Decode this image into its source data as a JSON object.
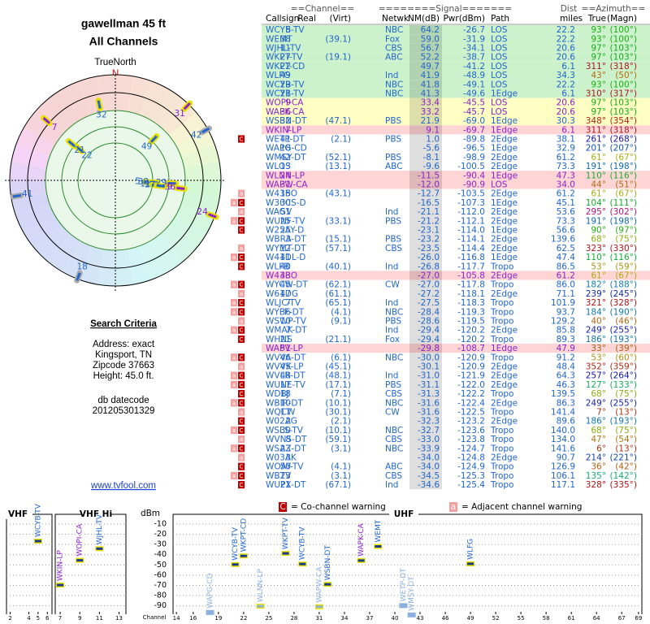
{
  "header": {
    "title": "gawellman 45 ft",
    "subtitle": "All Channels"
  },
  "polar": {
    "north_label": "TrueNorth",
    "north": "N"
  },
  "criteria": {
    "heading": "Search Criteria",
    "lines": [
      "Address: exact",
      "Kingsport, TN",
      "Zipcode 37663",
      "Height: 45.0 ft."
    ],
    "db_label": "db datecode",
    "db_code": "201205301329",
    "link": "www.tvfool.com"
  },
  "table": {
    "groups": [
      "==Channel==",
      "========Signal=======",
      "Dist",
      "==Azimuth=="
    ],
    "columns": [
      "Callsign",
      "Real",
      "(Virt)",
      "Netwk",
      "NM(dB)",
      "Pwr(dBm)",
      "Path",
      "miles",
      "True",
      "(Magn)"
    ],
    "rows": [
      {
        "bg": "#ccf2cc",
        "color": "#2266cc",
        "cells": [
          "WCYB-TV",
          "5",
          null,
          "NBC",
          "64.2",
          "-26.7",
          "LOS",
          "22.2",
          "93°",
          "(100°)"
        ]
      },
      {
        "bg": "#ccf2cc",
        "color": "#2266cc",
        "cells": [
          "WEMT",
          "38",
          "(39.1)",
          "Fox",
          "59.0",
          "-31.9",
          "LOS",
          "22.2",
          "93°",
          "(100°)"
        ]
      },
      {
        "bg": "#ccf2cc",
        "color": "#2266cc",
        "cells": [
          "WJHL-TV",
          "11",
          null,
          "CBS",
          "56.7",
          "-34.1",
          "LOS",
          "20.6",
          "97°",
          "(103°)"
        ]
      },
      {
        "bg": "#ccf2cc",
        "color": "#2266cc",
        "cells": [
          "WKPT-TV",
          "27",
          "(19.1)",
          "ABC",
          "52.2",
          "-38.7",
          "LOS",
          "20.6",
          "97°",
          "(103°)"
        ]
      },
      {
        "bg": "#ccf2cc",
        "color": "#2266cc",
        "cells": [
          "WKPT-CD",
          "22",
          null,
          null,
          "49.7",
          "-41.2",
          "LOS",
          "6.1",
          "311°",
          "(318°)"
        ]
      },
      {
        "bg": "#ccf2cc",
        "color": "#2266cc",
        "cells": [
          "WLFG",
          "49",
          null,
          "Ind",
          "41.9",
          "-48.9",
          "LOS",
          "34.3",
          "43°",
          "(50°)"
        ]
      },
      {
        "bg": "#ccf2cc",
        "color": "#2266cc",
        "cells": [
          "WCYB-TV",
          "29",
          null,
          "NBC",
          "41.8",
          "-49.1",
          "LOS",
          "22.2",
          "93°",
          "(100°)"
        ]
      },
      {
        "bg": "#ccf2cc",
        "color": "#2266cc",
        "cells": [
          "WCYB-TV",
          "21",
          null,
          "NBC",
          "41.3",
          "-49.6",
          "1Edge",
          "6.1",
          "310°",
          "(317°)"
        ]
      },
      {
        "bg": "#ffffc4",
        "color": "#8a22c8",
        "cells": [
          "WOPI-CA",
          "9",
          null,
          null,
          "33.4",
          "-45.5",
          "LOS",
          "20.6",
          "97°",
          "(103°)"
        ]
      },
      {
        "bg": "#ffffc4",
        "color": "#8a22c8",
        "cells": [
          "WAPK-CA",
          "36",
          null,
          null,
          "33.2",
          "-45.7",
          "LOS",
          "20.6",
          "97°",
          "(103°)"
        ]
      },
      {
        "bg": "#ffffc4",
        "color": "#2266cc",
        "cells": [
          "WSBN-DT",
          "32",
          "(47.1)",
          "PBS",
          "21.9",
          "-69.0",
          "1Edge",
          "30.3",
          "348°",
          "(354°)"
        ]
      },
      {
        "bg": "#ffd4d4",
        "color": "#8a22c8",
        "cells": [
          "WKIN-LP",
          "7",
          null,
          null,
          "9.1",
          "-69.7",
          "1Edge",
          "6.1",
          "311°",
          "(318°)"
        ]
      },
      {
        "bg": "#ffffff",
        "color": "#2266cc",
        "warn": [
          "C"
        ],
        "cells": [
          "WETP-DT",
          "41",
          "(2.1)",
          "PBS",
          "1.0",
          "-89.8",
          "2Edge",
          "38.1",
          "261°",
          "(268°)"
        ]
      },
      {
        "bg": "#ffffff",
        "color": "#2266cc",
        "cells": [
          "WAPG-CD",
          "18",
          null,
          null,
          "-5.6",
          "-96.5",
          "1Edge",
          "32.9",
          "201°",
          "(207°)"
        ]
      },
      {
        "bg": "#ffffff",
        "color": "#2266cc",
        "cells": [
          "WMSY-DT",
          "42",
          "(52.1)",
          "PBS",
          "-8.1",
          "-98.9",
          "2Edge",
          "61.2",
          "61°",
          "(67°)"
        ]
      },
      {
        "bg": "#ffffff",
        "color": "#2266cc",
        "cells": [
          "WLOS",
          "13",
          "(13.1)",
          "ABC",
          "-9.6",
          "-100.5",
          "2Edge",
          "73.3",
          "191°",
          "(198°)"
        ]
      },
      {
        "bg": "#ffd4d4",
        "color": "#8a22c8",
        "cells": [
          "WLNN-LP",
          "24",
          null,
          null,
          "-11.5",
          "-90.4",
          "1Edge",
          "47.3",
          "110°",
          "(116°)"
        ]
      },
      {
        "bg": "#ffd4d4",
        "color": "#8a22c8",
        "cells": [
          "WAPW-CA",
          "31",
          null,
          null,
          "-12.0",
          "-90.9",
          "LOS",
          "34.0",
          "44°",
          "(51°)"
        ]
      },
      {
        "bg": "#ffffff",
        "color": "#2266cc",
        "warn": [
          "a"
        ],
        "cells": [
          "W43BO",
          "15",
          "(43.1)",
          null,
          "-12.7",
          "-103.5",
          "2Edge",
          "61.2",
          "61°",
          "(67°)"
        ]
      },
      {
        "bg": "#ffffff",
        "color": "#2266cc",
        "warn": [
          "a",
          "C"
        ],
        "cells": [
          "W30CS-D",
          "30",
          null,
          null,
          "-16.5",
          "-107.3",
          "1Edge",
          "45.1",
          "104°",
          "(111°)"
        ]
      },
      {
        "bg": "#ffffff",
        "color": "#2266cc",
        "warn": [
          "a"
        ],
        "cells": [
          "WAGV",
          "51",
          null,
          "Ind",
          "-21.1",
          "-112.0",
          "2Edge",
          "53.6",
          "295°",
          "(302°)"
        ]
      },
      {
        "bg": "#ffffff",
        "color": "#2266cc",
        "warn": [
          "a",
          "C"
        ],
        "cells": [
          "WUNF-TV",
          "25",
          "(33.1)",
          "PBS",
          "-21.2",
          "-112.1",
          "2Edge",
          "73.3",
          "191°",
          "(198°)"
        ]
      },
      {
        "bg": "#ffffff",
        "color": "#2266cc",
        "warn": [
          "C"
        ],
        "cells": [
          "W25AY-D",
          "25",
          null,
          null,
          "-23.1",
          "-114.0",
          "1Edge",
          "56.6",
          "90°",
          "(97°)"
        ]
      },
      {
        "bg": "#ffffff",
        "color": "#2266cc",
        "cells": [
          "WBRA-DT",
          "3",
          "(15.1)",
          "PBS",
          "-23.2",
          "-114.1",
          "2Edge",
          "139.6",
          "68°",
          "(75°)"
        ]
      },
      {
        "bg": "#ffffff",
        "color": "#2266cc",
        "warn": [
          "a"
        ],
        "cells": [
          "WYMT-DT",
          "12",
          "(57.1)",
          "CBS",
          "-23.5",
          "-114.4",
          "2Edge",
          "62.5",
          "323°",
          "(330°)"
        ]
      },
      {
        "bg": "#ffffff",
        "color": "#2266cc",
        "warn": [
          "a",
          "C"
        ],
        "cells": [
          "W41DL-D",
          "41",
          null,
          null,
          "-26.0",
          "-116.8",
          "1Edge",
          "47.4",
          "110°",
          "(116°)"
        ]
      },
      {
        "bg": "#ffffff",
        "color": "#2266cc",
        "warn": [
          "C"
        ],
        "cells": [
          "WLFB",
          "40",
          "(40.1)",
          "Ind",
          "-26.8",
          "-117.7",
          "Tropo",
          "86.5",
          "53°",
          "(59°)"
        ]
      },
      {
        "bg": "#ffd4d4",
        "color": "#8a22c8",
        "cells": [
          "W43BO",
          "43",
          null,
          null,
          "-27.0",
          "-105.8",
          "2Edge",
          "61.2",
          "61°",
          "(67°)"
        ]
      },
      {
        "bg": "#ffffff",
        "color": "#2266cc",
        "warn": [
          "a",
          "C"
        ],
        "cells": [
          "WYCW-DT",
          "45",
          "(62.1)",
          "CW",
          "-27.0",
          "-117.8",
          "Tropo",
          "86.0",
          "182°",
          "(188°)"
        ]
      },
      {
        "bg": "#ffffff",
        "color": "#2266cc",
        "warn": [
          "a"
        ],
        "cells": [
          "W61DG",
          "47",
          "(61.1)",
          null,
          "-27.2",
          "-118.1",
          "2Edge",
          "71.1",
          "239°",
          "(245°)"
        ]
      },
      {
        "bg": "#ffffff",
        "color": "#2266cc",
        "warn": [
          "a",
          "C"
        ],
        "cells": [
          "WLJC-TV",
          "7",
          "(65.1)",
          "Ind",
          "-27.5",
          "-118.3",
          "Tropo",
          "101.9",
          "321°",
          "(328°)"
        ]
      },
      {
        "bg": "#ffffff",
        "color": "#2266cc",
        "warn": [
          "a",
          "C"
        ],
        "cells": [
          "WYFF-DT",
          "36",
          "(4.1)",
          "NBC",
          "-28.4",
          "-119.3",
          "Tropo",
          "93.7",
          "184°",
          "(190°)"
        ]
      },
      {
        "bg": "#ffffff",
        "color": "#2266cc",
        "warn": [
          "a"
        ],
        "cells": [
          "WSWP-TV",
          "10",
          "(9.1)",
          "PBS",
          "-28.6",
          "-119.5",
          "Tropo",
          "129.2",
          "40°",
          "(46°)"
        ]
      },
      {
        "bg": "#ffffff",
        "color": "#2266cc",
        "warn": [
          "a",
          "C"
        ],
        "cells": [
          "WMAK-DT",
          "7",
          null,
          "Ind",
          "-29.4",
          "-120.2",
          "2Edge",
          "85.8",
          "249°",
          "(255°)"
        ]
      },
      {
        "bg": "#ffffff",
        "color": "#2266cc",
        "warn": [
          "C"
        ],
        "cells": [
          "WHNS",
          "21",
          "(21.1)",
          "Fox",
          "-29.4",
          "-120.2",
          "Tropo",
          "89.3",
          "186°",
          "(193°)"
        ]
      },
      {
        "bg": "#ffd4d4",
        "color": "#8a22c8",
        "cells": [
          "WAPV-LP",
          "51",
          null,
          null,
          "-29.8",
          "-108.7",
          "1Edge",
          "47.9",
          "33°",
          "(39°)"
        ]
      },
      {
        "bg": "#ffffff",
        "color": "#2266cc",
        "warn": [
          "a",
          "C"
        ],
        "cells": [
          "WVVA-DT",
          "46",
          "(6.1)",
          "NBC",
          "-30.0",
          "-120.9",
          "Tropo",
          "91.2",
          "53°",
          "(60°)"
        ]
      },
      {
        "bg": "#ffffff",
        "color": "#2266cc",
        "warn": [
          "a"
        ],
        "cells": [
          "WVVK-LP",
          "45",
          "(45.1)",
          null,
          "-30.1",
          "-120.9",
          "2Edge",
          "48.4",
          "352°",
          "(359°)"
        ]
      },
      {
        "bg": "#ffffff",
        "color": "#2266cc",
        "warn": [
          "a",
          "C"
        ],
        "cells": [
          "WVLR-DT",
          "48",
          "(48.1)",
          "Ind",
          "-31.0",
          "-121.9",
          "2Edge",
          "64.3",
          "257°",
          "(264°)"
        ]
      },
      {
        "bg": "#ffffff",
        "color": "#2266cc",
        "warn": [
          "a",
          "C"
        ],
        "cells": [
          "WUNE-TV",
          "17",
          "(17.1)",
          "PBS",
          "-31.1",
          "-122.0",
          "2Edge",
          "46.3",
          "127°",
          "(133°)"
        ]
      },
      {
        "bg": "#ffffff",
        "color": "#2266cc",
        "warn": [
          "C"
        ],
        "cells": [
          "WDBJ",
          "18",
          "(7.1)",
          "CBS",
          "-31.3",
          "-122.2",
          "Tropo",
          "139.5",
          "68°",
          "(75°)"
        ]
      },
      {
        "bg": "#ffffff",
        "color": "#2266cc",
        "warn": [
          "a",
          "C"
        ],
        "cells": [
          "WBIR-DT",
          "10",
          "(10.1)",
          "NBC",
          "-31.6",
          "-122.4",
          "2Edge",
          "86.3",
          "249°",
          "(255°)"
        ]
      },
      {
        "bg": "#ffffff",
        "color": "#2266cc",
        "warn": [
          "a"
        ],
        "cells": [
          "WQCW",
          "17",
          "(30.1)",
          "CW",
          "-31.6",
          "-122.5",
          "Tropo",
          "141.4",
          "7°",
          "(13°)"
        ]
      },
      {
        "bg": "#ffffff",
        "color": "#2266cc",
        "warn": [
          "C"
        ],
        "cells": [
          "W02AG",
          "2",
          "(2.1)",
          null,
          "-32.3",
          "-123.2",
          "2Edge",
          "89.6",
          "186°",
          "(193°)"
        ]
      },
      {
        "bg": "#ffffff",
        "color": "#2266cc",
        "warn": [
          "a",
          "C"
        ],
        "cells": [
          "WSLS-TV",
          "30",
          "(10.1)",
          "NBC",
          "-32.7",
          "-123.6",
          "Tropo",
          "140.0",
          "68°",
          "(75°)"
        ]
      },
      {
        "bg": "#ffffff",
        "color": "#2266cc",
        "warn": [
          "a"
        ],
        "cells": [
          "WVNS-DT",
          "8",
          "(59.1)",
          "CBS",
          "-33.0",
          "-123.8",
          "Tropo",
          "134.0",
          "47°",
          "(54°)"
        ]
      },
      {
        "bg": "#ffffff",
        "color": "#2266cc",
        "warn": [
          "a",
          "C"
        ],
        "cells": [
          "WSAZ-DT",
          "23",
          "(3.1)",
          "NBC",
          "-33.9",
          "-124.7",
          "Tropo",
          "141.6",
          "6°",
          "(13°)"
        ]
      },
      {
        "bg": "#ffffff",
        "color": "#2266cc",
        "warn": [
          "a"
        ],
        "cells": [
          "W03AK",
          "3",
          null,
          null,
          "-34.0",
          "-124.8",
          "2Edge",
          "90.7",
          "214°",
          "(221°)"
        ]
      },
      {
        "bg": "#ffffff",
        "color": "#2266cc",
        "warn": [
          "C"
        ],
        "cells": [
          "WOAY-TV",
          "50",
          "(4.1)",
          "ABC",
          "-34.0",
          "-124.9",
          "Tropo",
          "126.9",
          "36°",
          "(42°)"
        ]
      },
      {
        "bg": "#ffffff",
        "color": "#2266cc",
        "warn": [
          "a",
          "C"
        ],
        "cells": [
          "WBTV",
          "23",
          "(3.1)",
          "CBS",
          "-34.5",
          "-125.3",
          "Tropo",
          "106.1",
          "135°",
          "(142°)"
        ]
      },
      {
        "bg": "#ffffff",
        "color": "#2266cc",
        "warn": [
          "C"
        ],
        "cells": [
          "WUPX-DT",
          "21",
          "(67.1)",
          "Ind",
          "-34.6",
          "-125.4",
          "Tropo",
          "117.1",
          "328°",
          "(335°)"
        ]
      }
    ]
  },
  "spectrum": {
    "legend": [
      {
        "mark": "C",
        "text": "= Co-channel warning"
      },
      {
        "mark": "a",
        "text": "= Adjacent channel warning"
      }
    ],
    "y_label": "dBm",
    "x_label": "Channel",
    "ylim": [
      -100,
      -5
    ],
    "yticks": [
      -10,
      -20,
      -30,
      -40,
      -50,
      -60,
      -70,
      -80,
      -90
    ],
    "bands": [
      {
        "title": "VHF",
        "xlim": [
          1.6,
          6.5
        ],
        "xticks": [
          2,
          4,
          5,
          6
        ]
      },
      {
        "title": "VHF Hi",
        "xlim": [
          6.5,
          13.7
        ],
        "xticks": [
          7,
          9,
          11,
          13
        ]
      },
      {
        "title": "UHF",
        "xlim": [
          13.6,
          69.4
        ],
        "xticks": [
          14,
          16,
          19,
          22,
          25,
          28,
          31,
          34,
          37,
          40,
          43,
          46,
          49,
          52,
          55,
          58,
          61,
          64,
          67,
          69
        ]
      }
    ]
  }
}
